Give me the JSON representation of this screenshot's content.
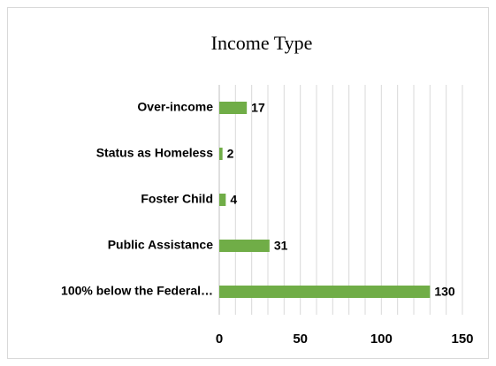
{
  "chart_data": {
    "type": "hbar",
    "title": "Income Type",
    "categories": [
      "Over-income",
      "Status as Homeless",
      "Foster Child",
      "Public Assistance",
      "100% below the Federal…"
    ],
    "values": [
      17,
      2,
      4,
      31,
      130
    ],
    "color": "#70ad47",
    "xlim": [
      0,
      150
    ],
    "xticks": [
      0,
      50,
      100,
      150
    ],
    "minor_xticks": [
      0,
      10,
      20,
      30,
      40,
      50,
      60,
      70,
      80,
      90,
      100,
      110,
      120,
      130,
      140,
      150
    ],
    "grid": true
  }
}
